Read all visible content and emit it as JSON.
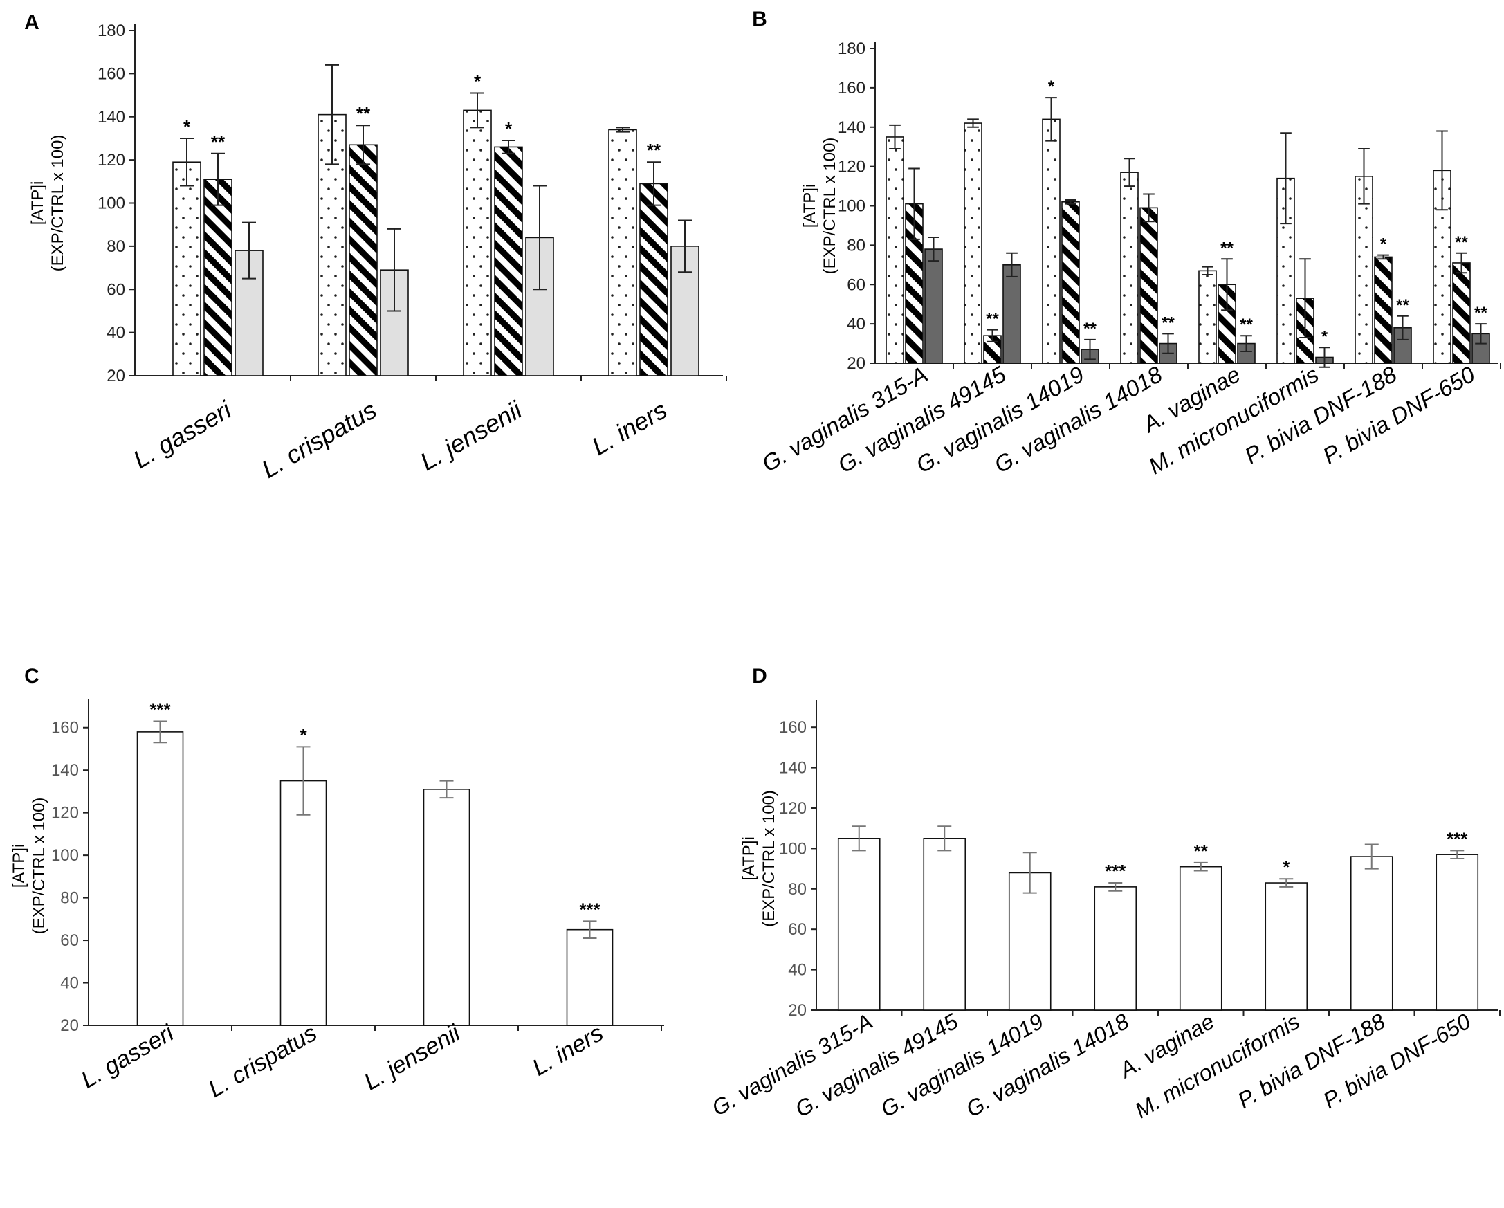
{
  "chart_data": [
    {
      "panel": "A",
      "type": "bar",
      "ylabel_line1": "[ATP]i",
      "ylabel_line2": "(EXP/CTRL x 100)",
      "ylim": [
        20,
        180
      ],
      "yticks": [
        20,
        40,
        60,
        80,
        100,
        120,
        140,
        160,
        180
      ],
      "categories": [
        "L. gasseri",
        "L. crispatus",
        "L. jensenii",
        "L. iners"
      ],
      "series": [
        {
          "name": "dotted",
          "pattern": "dots",
          "values": [
            119,
            141,
            143,
            134
          ],
          "errors": [
            11,
            23,
            8,
            1
          ],
          "sig": [
            "*",
            "",
            "*",
            ""
          ]
        },
        {
          "name": "hatched",
          "pattern": "stripes",
          "values": [
            111,
            127,
            126,
            109
          ],
          "errors": [
            12,
            9,
            3,
            10
          ],
          "sig": [
            "**",
            "**",
            "*",
            "**"
          ]
        },
        {
          "name": "gray",
          "pattern": "light",
          "values": [
            78,
            69,
            84,
            80
          ],
          "errors": [
            13,
            19,
            24,
            12
          ],
          "sig": [
            "",
            "",
            "",
            ""
          ]
        }
      ],
      "colors": {
        "light": "#e0e0e0",
        "stripe": "#000000"
      }
    },
    {
      "panel": "B",
      "type": "bar",
      "ylabel_line1": "[ATP]i",
      "ylabel_line2": "(EXP/CTRL x 100)",
      "ylim": [
        20,
        180
      ],
      "yticks": [
        20,
        40,
        60,
        80,
        100,
        120,
        140,
        160,
        180
      ],
      "categories": [
        "G. vaginalis 315-A",
        "G. vaginalis 49145",
        "G. vaginalis 14019",
        "G. vaginalis 14018",
        "A. vaginae",
        "M. micronuciformis",
        "P. bivia DNF-188",
        "P. bivia DNF-650"
      ],
      "series": [
        {
          "name": "dotted",
          "pattern": "dots",
          "values": [
            135,
            142,
            144,
            117,
            67,
            114,
            115,
            118
          ],
          "errors": [
            6,
            2,
            11,
            7,
            2,
            23,
            14,
            20
          ],
          "sig": [
            "",
            "",
            "*",
            "",
            "",
            "",
            "",
            ""
          ]
        },
        {
          "name": "hatched",
          "pattern": "stripes",
          "values": [
            101,
            34,
            102,
            99,
            60,
            53,
            74,
            71
          ],
          "errors": [
            18,
            3,
            1,
            7,
            13,
            20,
            1,
            5
          ],
          "sig": [
            "",
            "**",
            "",
            "",
            "**",
            "",
            "*",
            "**"
          ]
        },
        {
          "name": "dark",
          "pattern": "dark",
          "values": [
            78,
            70,
            27,
            30,
            30,
            23,
            38,
            35
          ],
          "errors": [
            6,
            6,
            5,
            5,
            4,
            5,
            6,
            5
          ],
          "sig": [
            "",
            "",
            "**",
            "**",
            "**",
            "*",
            "**",
            "**"
          ]
        }
      ],
      "colors": {
        "dark": "#686868",
        "stripe": "#000000"
      }
    },
    {
      "panel": "C",
      "type": "bar",
      "ylabel_line1": "[ATP]i",
      "ylabel_line2": "(EXP/CTRL x 100)",
      "ylim": [
        20,
        170
      ],
      "yticks": [
        20,
        40,
        60,
        80,
        100,
        120,
        140,
        160
      ],
      "categories": [
        "L. gasseri",
        "L. crispatus",
        "L. jensenii",
        "L. iners"
      ],
      "series": [
        {
          "name": "treatment",
          "pattern": "white",
          "values": [
            158,
            135,
            131,
            65
          ],
          "errors": [
            5,
            16,
            4,
            4
          ],
          "sig": [
            "***",
            "*",
            "",
            "***"
          ]
        }
      ],
      "colors": {
        "error_bar": "#777777"
      }
    },
    {
      "panel": "D",
      "type": "bar",
      "ylabel_line1": "[ATP]i",
      "ylabel_line2": "(EXP/CTRL x 100)",
      "ylim": [
        20,
        170
      ],
      "yticks": [
        20,
        40,
        60,
        80,
        100,
        120,
        140,
        160
      ],
      "categories": [
        "G. vaginalis 315-A",
        "G. vaginalis 49145",
        "G. vaginalis 14019",
        "G. vaginalis 14018",
        "A. vaginae",
        "M. micronuciformis",
        "P. bivia DNF-188",
        "P. bivia DNF-650"
      ],
      "series": [
        {
          "name": "treatment",
          "pattern": "white",
          "values": [
            105,
            105,
            88,
            81,
            91,
            83,
            96,
            97
          ],
          "errors": [
            6,
            6,
            10,
            2,
            2,
            2,
            6,
            2
          ],
          "sig": [
            "",
            "",
            "",
            "***",
            "**",
            "*",
            "",
            "***"
          ]
        }
      ],
      "colors": {
        "error_bar": "#777777"
      }
    }
  ]
}
